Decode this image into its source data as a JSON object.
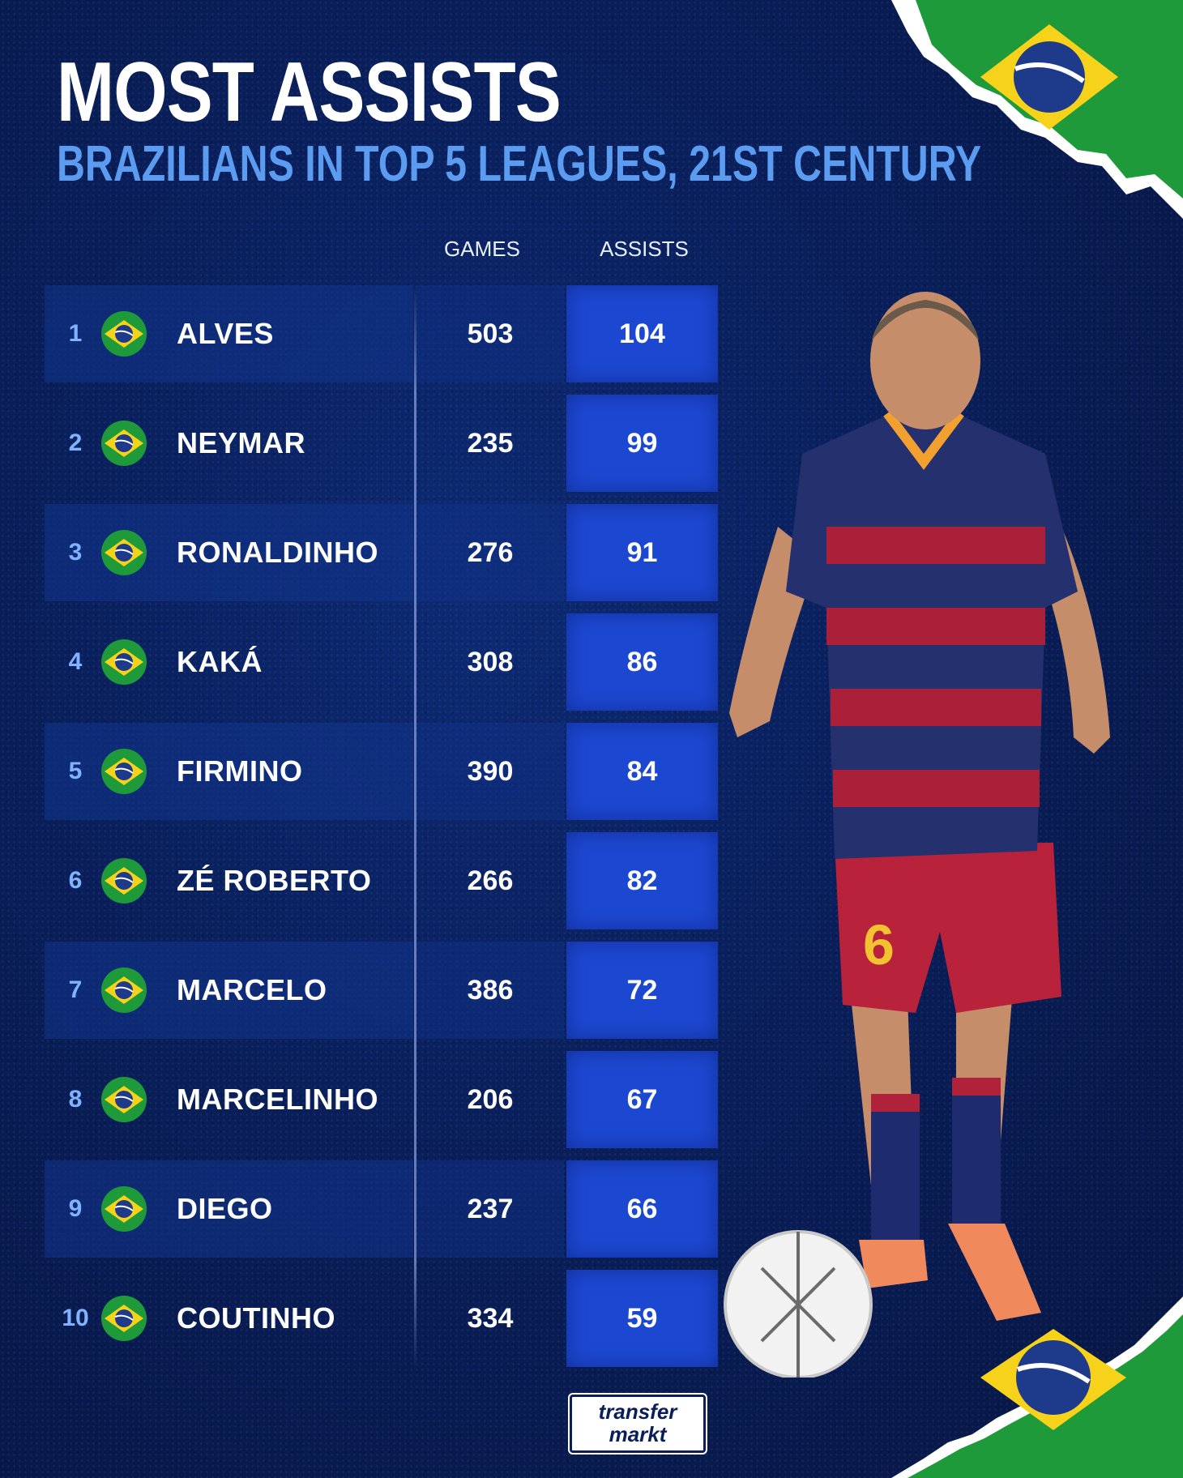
{
  "title": "MOST ASSISTS",
  "subtitle": "BRAZILIANS IN TOP 5 LEAGUES, 21ST CENTURY",
  "columns": {
    "games": "GAMES",
    "assists": "ASSISTS"
  },
  "rows": [
    {
      "rank": "1",
      "name": "ALVES",
      "games": "503",
      "assists": "104"
    },
    {
      "rank": "2",
      "name": "NEYMAR",
      "games": "235",
      "assists": "99"
    },
    {
      "rank": "3",
      "name": "RONALDINHO",
      "games": "276",
      "assists": "91"
    },
    {
      "rank": "4",
      "name": "KAKÁ",
      "games": "308",
      "assists": "86"
    },
    {
      "rank": "5",
      "name": "FIRMINO",
      "games": "390",
      "assists": "84"
    },
    {
      "rank": "6",
      "name": "ZÉ ROBERTO",
      "games": "266",
      "assists": "82"
    },
    {
      "rank": "7",
      "name": "MARCELO",
      "games": "386",
      "assists": "72"
    },
    {
      "rank": "8",
      "name": "MARCELINHO",
      "games": "206",
      "assists": "67"
    },
    {
      "rank": "9",
      "name": "DIEGO",
      "games": "237",
      "assists": "66"
    },
    {
      "rank": "10",
      "name": "COUTINHO",
      "games": "334",
      "assists": "59"
    }
  ],
  "logo": {
    "line1": "transfer",
    "line2": "markt"
  },
  "colors": {
    "background": "#0a1f5a",
    "accent": "#1c47d0",
    "subtitle": "#5b9bf0",
    "flag_green": "#1f9a3a",
    "flag_yellow": "#f7d21a",
    "flag_blue": "#1e3a8a"
  },
  "icons": {
    "flag": "brazil-flag-icon",
    "player": "player-photo"
  }
}
